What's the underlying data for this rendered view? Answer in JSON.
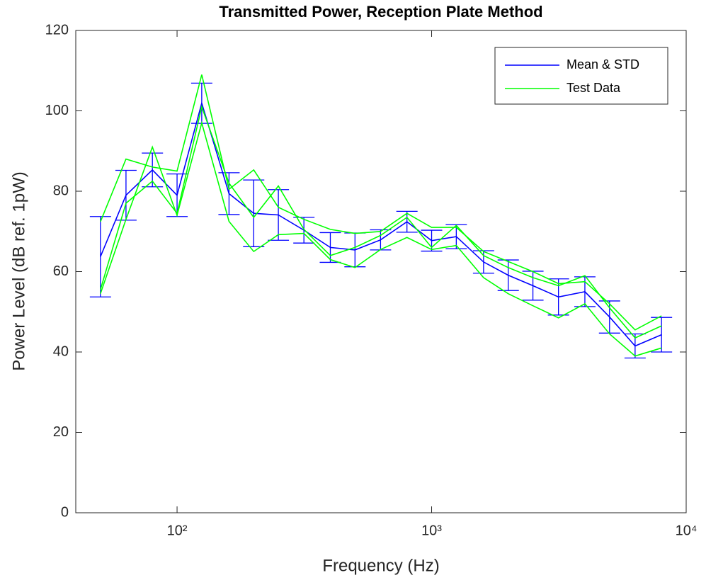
{
  "chart_data": {
    "type": "line",
    "title": "Transmitted Power, Reception Plate Method",
    "xlabel": "Frequency (Hz)",
    "ylabel": "Power Level (dB ref. 1pW)",
    "xscale": "log",
    "x": [
      50,
      63,
      80,
      100,
      125,
      160,
      200,
      250,
      315,
      400,
      500,
      630,
      800,
      1000,
      1250,
      1600,
      2000,
      2500,
      3150,
      4000,
      5000,
      6300,
      8000
    ],
    "series": [
      {
        "name": "Mean & STD",
        "color": "#0000ff",
        "values": [
          63.7,
          79,
          85.3,
          79,
          101.9,
          79.4,
          74.5,
          74.1,
          70.3,
          66,
          65.4,
          67.9,
          72.4,
          67.7,
          68.7,
          62.4,
          59.1,
          56.5,
          53.7,
          55,
          48.7,
          41.5,
          44.3
        ],
        "errors": [
          10,
          6.2,
          4.2,
          5.3,
          5,
          5.2,
          8.3,
          6.3,
          3.2,
          3.7,
          4.2,
          2.5,
          2.6,
          2.6,
          3,
          2.8,
          3.8,
          3.6,
          4.5,
          3.7,
          4,
          3,
          4.3
        ]
      },
      {
        "name": "Test Data",
        "color": "#00ff00",
        "values": [
          72.4,
          88,
          86,
          85,
          109,
          80.5,
          85.3,
          76,
          73,
          70.5,
          69.5,
          70,
          74.5,
          71,
          71,
          65,
          62.5,
          60,
          57,
          57.5,
          52,
          45.5,
          49
        ]
      },
      {
        "color": "#00ff00",
        "values": [
          55.5,
          77,
          82.5,
          74.5,
          101,
          82,
          73.5,
          81.3,
          70.5,
          64,
          66,
          69,
          73.5,
          66,
          71.5,
          64,
          61,
          58.5,
          56.5,
          59,
          51,
          43.5,
          46.5
        ]
      },
      {
        "color": "#00ff00",
        "values": [
          54.5,
          73,
          91,
          74,
          97,
          72.5,
          65,
          69.2,
          69.5,
          63,
          61,
          65.5,
          68.5,
          65.5,
          66.5,
          58.5,
          54.5,
          51.5,
          48.5,
          52,
          44.5,
          39,
          41
        ]
      }
    ],
    "xlim": [
      40,
      10000
    ],
    "xticks": [
      {
        "value": 100,
        "label": "10²"
      },
      {
        "value": 1000,
        "label": "10³"
      },
      {
        "value": 10000,
        "label": "10⁴"
      }
    ],
    "ylim": [
      0,
      120
    ],
    "yticks": [
      0,
      20,
      40,
      60,
      80,
      100,
      120
    ],
    "grid": false,
    "legend": "northeast"
  }
}
